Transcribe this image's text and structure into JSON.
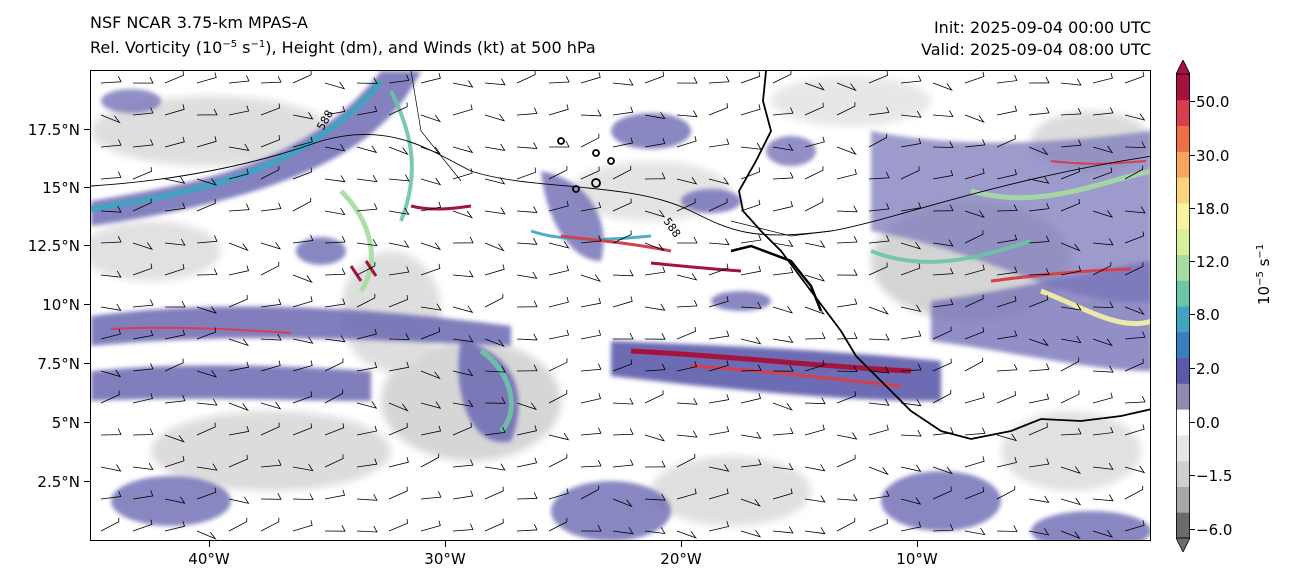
{
  "header": {
    "model": "NSF NCAR 3.75-km MPAS-A",
    "field_prefix": "Rel. Vorticity (10",
    "field_exp1": "−5",
    "field_mid": " s",
    "field_exp2": "−1",
    "field_suffix": "), Height (dm), and Winds (kt) at 500 hPa",
    "init": "Init: 2025-09-04 00:00 UTC",
    "valid": "Valid: 2025-09-04 08:00 UTC"
  },
  "map": {
    "lat_ticks": [
      "17.5°N",
      "15°N",
      "12.5°N",
      "10°N",
      "7.5°N",
      "5°N",
      "2.5°N"
    ],
    "lon_ticks": [
      "40°W",
      "30°W",
      "20°W",
      "10°W"
    ],
    "contour_labels": [
      "588",
      "588"
    ]
  },
  "colorbar": {
    "tick_labels": [
      "50.0",
      "30.0",
      "18.0",
      "12.0",
      "8.0",
      "2.0",
      "0.0",
      "−1.5",
      "−6.0"
    ],
    "label_base": "10",
    "label_exp1": "−5",
    "label_mid": " s",
    "label_exp2": "−1",
    "colors": [
      "#6b6b6b",
      "#a8a8a8",
      "#cfcfcf",
      "#e6e6e6",
      "#ffffff",
      "#8e8bb0",
      "#5b5aa8",
      "#3c7dc0",
      "#3ea4c0",
      "#6cc5a5",
      "#a7dca0",
      "#d8ee9a",
      "#f7f3a3",
      "#fbd37f",
      "#f8a55f",
      "#ef7048",
      "#d53f4e",
      "#a5123e"
    ]
  }
}
